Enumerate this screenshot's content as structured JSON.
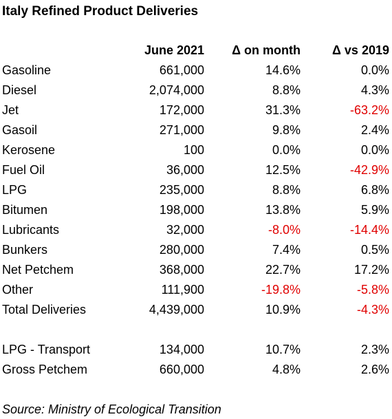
{
  "title": "Italy Refined Product Deliveries",
  "table": {
    "header": [
      "June 2021",
      "Δ on month",
      "Δ vs 2019"
    ],
    "rows": [
      [
        "Gasoline",
        "661,000",
        "14.6%",
        "0.0%"
      ],
      [
        "Diesel",
        "2,074,000",
        "8.8%",
        "4.3%"
      ],
      [
        "Jet",
        "172,000",
        "31.3%",
        "-63.2%"
      ],
      [
        "Gasoil",
        "271,000",
        "9.8%",
        "2.4%"
      ],
      [
        "Kerosene",
        "100",
        "0.0%",
        "0.0%"
      ],
      [
        "Fuel Oil",
        "36,000",
        "12.5%",
        "-42.9%"
      ],
      [
        "LPG",
        "235,000",
        "8.8%",
        "6.8%"
      ],
      [
        "Bitumen",
        "198,000",
        "13.8%",
        "5.9%"
      ],
      [
        "Lubricants",
        "32,000",
        "-8.0%",
        "-14.4%"
      ],
      [
        "Bunkers",
        "280,000",
        "7.4%",
        "0.5%"
      ],
      [
        "Net Petchem",
        "368,000",
        "22.7%",
        "17.2%"
      ],
      [
        "Other",
        "111,900",
        "-19.8%",
        "-5.8%"
      ],
      [
        "Total Deliveries",
        "4,439,000",
        "10.9%",
        "-4.3%"
      ]
    ],
    "extra_rows": [
      [
        "LPG - Transport",
        "134,000",
        "10.7%",
        "2.3%"
      ],
      [
        "Gross Petchem",
        "660,000",
        "4.8%",
        "2.6%"
      ]
    ]
  },
  "source": "Source: Ministry of Ecological Transition"
}
